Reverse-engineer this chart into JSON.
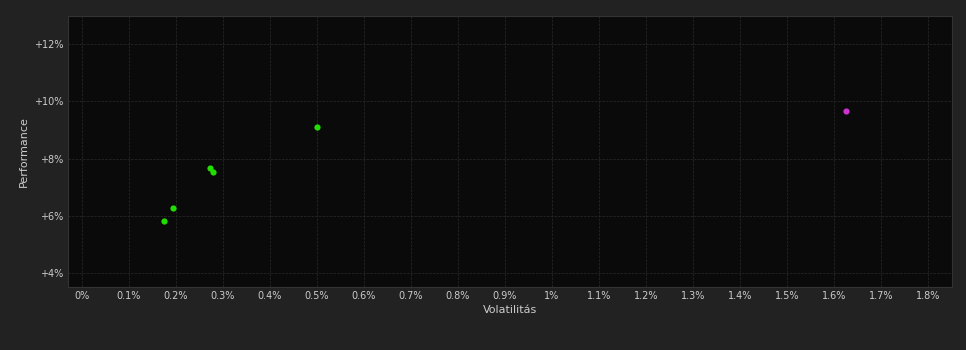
{
  "background_color": "#222222",
  "plot_bg_color": "#0a0a0a",
  "grid_color": "#2a2a2a",
  "text_color": "#cccccc",
  "xlabel": "Volatilitás",
  "ylabel": "Performance",
  "x_ticks": [
    0.0,
    0.001,
    0.002,
    0.003,
    0.004,
    0.005,
    0.006,
    0.007,
    0.008,
    0.009,
    0.01,
    0.011,
    0.012,
    0.013,
    0.014,
    0.015,
    0.016,
    0.017,
    0.018
  ],
  "x_tick_labels": [
    "0%",
    "0.1%",
    "0.2%",
    "0.3%",
    "0.4%",
    "0.5%",
    "0.6%",
    "0.7%",
    "0.8%",
    "0.9%",
    "1%",
    "1.1%",
    "1.2%",
    "1.3%",
    "1.4%",
    "1.5%",
    "1.6%",
    "1.7%",
    "1.8%"
  ],
  "y_ticks": [
    0.04,
    0.06,
    0.08,
    0.1,
    0.12
  ],
  "y_tick_labels": [
    "+4%",
    "+6%",
    "+8%",
    "+10%",
    "+12%"
  ],
  "xlim": [
    -0.0003,
    0.0185
  ],
  "ylim": [
    0.035,
    0.13
  ],
  "green_points": [
    [
      0.00175,
      0.058
    ],
    [
      0.00195,
      0.0628
    ],
    [
      0.00272,
      0.0768
    ],
    [
      0.0028,
      0.0752
    ],
    [
      0.005,
      0.0912
    ]
  ],
  "magenta_points": [
    [
      0.01625,
      0.0968
    ]
  ],
  "green_color": "#22dd00",
  "magenta_color": "#cc33cc",
  "marker_size": 20
}
